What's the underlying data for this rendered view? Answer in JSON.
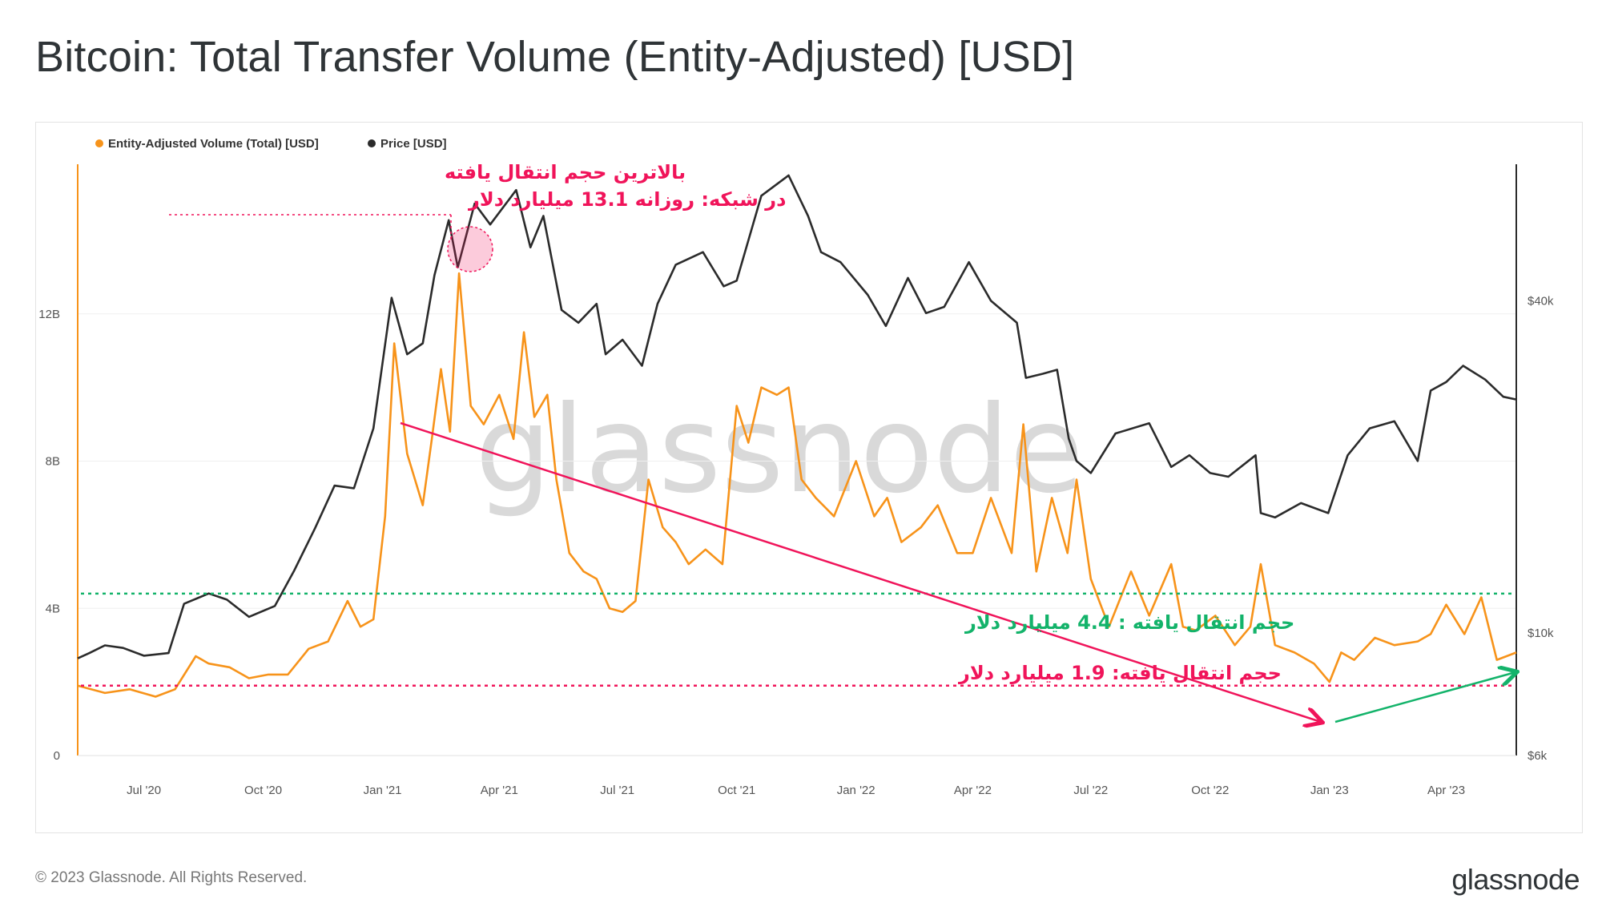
{
  "page": {
    "title": "Bitcoin: Total Transfer Volume (Entity-Adjusted) [USD]",
    "copyright": "© 2023 Glassnode. All Rights Reserved.",
    "logo": "glassnode",
    "watermark": "glassnode"
  },
  "colors": {
    "volume": "#f7931a",
    "price": "#2b2b2b",
    "annotation_pink": "#f0145a",
    "annotation_green": "#13b36a"
  },
  "chart_data": {
    "type": "line",
    "legend_position": "top-left",
    "grid": true,
    "x_ticks": [
      "Jul '20",
      "Oct '20",
      "Jan '21",
      "Apr '21",
      "Jul '21",
      "Oct '21",
      "Jan '22",
      "Apr '22",
      "Jul '22",
      "Oct '22",
      "Jan '23",
      "Apr '23"
    ],
    "x_tick_dates": [
      "2020-07-01",
      "2020-10-01",
      "2021-01-01",
      "2021-04-01",
      "2021-07-01",
      "2021-10-01",
      "2022-01-01",
      "2022-04-01",
      "2022-07-01",
      "2022-10-01",
      "2023-01-01",
      "2023-04-01"
    ],
    "xlim": [
      "2020-05-11",
      "2023-05-25"
    ],
    "y_left": {
      "ticks": [
        "0",
        "4B",
        "8B",
        "12B"
      ],
      "tick_values": [
        0,
        4000000000,
        8000000000,
        12000000000
      ],
      "ylim": [
        0,
        16000000000
      ]
    },
    "y_right": {
      "scale": "log",
      "ticks": [
        "$6k",
        "$10k",
        "$40k"
      ],
      "tick_values": [
        6000,
        10000,
        40000
      ],
      "ylim": [
        6000,
        70000
      ]
    },
    "series": [
      {
        "name": "Entity-Adjusted Volume (Total) [USD]",
        "axis": "left",
        "x": [
          "2020-05-11",
          "2020-06-01",
          "2020-06-20",
          "2020-07-10",
          "2020-07-25",
          "2020-08-10",
          "2020-08-20",
          "2020-09-05",
          "2020-09-20",
          "2020-10-05",
          "2020-10-20",
          "2020-11-05",
          "2020-11-20",
          "2020-12-05",
          "2020-12-15",
          "2020-12-25",
          "2021-01-03",
          "2021-01-10",
          "2021-01-20",
          "2021-02-01",
          "2021-02-08",
          "2021-02-15",
          "2021-02-22",
          "2021-03-01",
          "2021-03-10",
          "2021-03-20",
          "2021-04-01",
          "2021-04-12",
          "2021-04-20",
          "2021-04-28",
          "2021-05-08",
          "2021-05-15",
          "2021-05-25",
          "2021-06-05",
          "2021-06-15",
          "2021-06-25",
          "2021-07-05",
          "2021-07-15",
          "2021-07-25",
          "2021-08-05",
          "2021-08-15",
          "2021-08-25",
          "2021-09-07",
          "2021-09-20",
          "2021-10-01",
          "2021-10-10",
          "2021-10-20",
          "2021-11-01",
          "2021-11-10",
          "2021-11-20",
          "2021-12-01",
          "2021-12-15",
          "2022-01-01",
          "2022-01-15",
          "2022-01-25",
          "2022-02-05",
          "2022-02-20",
          "2022-03-05",
          "2022-03-20",
          "2022-04-01",
          "2022-04-15",
          "2022-05-01",
          "2022-05-10",
          "2022-05-20",
          "2022-06-01",
          "2022-06-13",
          "2022-06-20",
          "2022-07-01",
          "2022-07-15",
          "2022-08-01",
          "2022-08-15",
          "2022-09-01",
          "2022-09-10",
          "2022-09-20",
          "2022-10-05",
          "2022-10-20",
          "2022-11-01",
          "2022-11-09",
          "2022-11-20",
          "2022-12-05",
          "2022-12-20",
          "2023-01-01",
          "2023-01-10",
          "2023-01-20",
          "2023-02-05",
          "2023-02-20",
          "2023-03-10",
          "2023-03-20",
          "2023-04-01",
          "2023-04-15",
          "2023-04-28",
          "2023-05-10",
          "2023-05-25"
        ],
        "values": [
          1900000000.0,
          1700000000.0,
          1800000000.0,
          1600000000.0,
          1800000000.0,
          2700000000.0,
          2500000000.0,
          2400000000.0,
          2100000000.0,
          2200000000.0,
          2200000000.0,
          2900000000.0,
          3100000000.0,
          4200000000.0,
          3500000000.0,
          3700000000.0,
          6500000000.0,
          11200000000.0,
          8200000000.0,
          6800000000.0,
          8600000000.0,
          10500000000.0,
          8800000000.0,
          13100000000.0,
          9500000000.0,
          9000000000.0,
          9800000000.0,
          8600000000.0,
          11500000000.0,
          9200000000.0,
          9800000000.0,
          7500000000.0,
          5500000000.0,
          5000000000.0,
          4800000000.0,
          4000000000.0,
          3900000000.0,
          4200000000.0,
          7500000000.0,
          6200000000.0,
          5800000000.0,
          5200000000.0,
          5600000000.0,
          5200000000.0,
          9500000000.0,
          8500000000.0,
          10000000000.0,
          9800000000.0,
          10000000000.0,
          7500000000.0,
          7000000000.0,
          6500000000.0,
          8000000000.0,
          6500000000.0,
          7000000000.0,
          5800000000.0,
          6200000000.0,
          6800000000.0,
          5500000000.0,
          5500000000.0,
          7000000000.0,
          5500000000.0,
          9000000000.0,
          5000000000.0,
          7000000000.0,
          5500000000.0,
          7500000000.0,
          4800000000.0,
          3500000000.0,
          5000000000.0,
          3800000000.0,
          5200000000.0,
          3500000000.0,
          3400000000.0,
          3800000000.0,
          3000000000.0,
          3500000000.0,
          5200000000.0,
          3000000000.0,
          2800000000.0,
          2500000000.0,
          2000000000.0,
          2800000000.0,
          2600000000.0,
          3200000000.0,
          3000000000.0,
          3100000000.0,
          3300000000.0,
          4100000000.0,
          3300000000.0,
          4300000000.0,
          2600000000.0,
          2800000000.0
        ]
      },
      {
        "name": "Price [USD]",
        "axis": "right",
        "x": [
          "2020-05-11",
          "2020-05-20",
          "2020-06-01",
          "2020-06-15",
          "2020-07-01",
          "2020-07-20",
          "2020-08-01",
          "2020-08-20",
          "2020-09-03",
          "2020-09-20",
          "2020-10-10",
          "2020-10-25",
          "2020-11-10",
          "2020-11-25",
          "2020-12-10",
          "2020-12-25",
          "2021-01-08",
          "2021-01-20",
          "2021-02-01",
          "2021-02-10",
          "2021-02-21",
          "2021-02-28",
          "2021-03-13",
          "2021-03-25",
          "2021-04-14",
          "2021-04-25",
          "2021-05-05",
          "2021-05-19",
          "2021-06-01",
          "2021-06-15",
          "2021-06-22",
          "2021-07-05",
          "2021-07-20",
          "2021-08-01",
          "2021-08-15",
          "2021-09-05",
          "2021-09-21",
          "2021-10-01",
          "2021-10-20",
          "2021-11-10",
          "2021-11-25",
          "2021-12-05",
          "2021-12-20",
          "2022-01-10",
          "2022-01-24",
          "2022-02-10",
          "2022-02-24",
          "2022-03-10",
          "2022-03-29",
          "2022-04-15",
          "2022-05-05",
          "2022-05-12",
          "2022-05-25",
          "2022-06-05",
          "2022-06-14",
          "2022-06-20",
          "2022-07-01",
          "2022-07-20",
          "2022-08-15",
          "2022-09-01",
          "2022-09-15",
          "2022-10-01",
          "2022-10-15",
          "2022-11-05",
          "2022-11-09",
          "2022-11-20",
          "2022-12-10",
          "2022-12-31",
          "2023-01-15",
          "2023-02-01",
          "2023-02-20",
          "2023-03-10",
          "2023-03-20",
          "2023-04-01",
          "2023-04-14",
          "2023-05-01",
          "2023-05-15",
          "2023-05-25"
        ],
        "values": [
          9000,
          9200,
          9500,
          9400,
          9100,
          9200,
          11300,
          11800,
          11500,
          10700,
          11200,
          13000,
          15500,
          18500,
          18300,
          23500,
          40500,
          32000,
          33500,
          44500,
          56000,
          46000,
          60000,
          55000,
          63500,
          50000,
          57000,
          38500,
          36500,
          39500,
          32000,
          34000,
          30500,
          39500,
          46500,
          49000,
          42500,
          43500,
          62000,
          67500,
          57000,
          49000,
          47000,
          41000,
          36000,
          44000,
          38000,
          39000,
          47000,
          40000,
          36500,
          29000,
          29500,
          30000,
          22500,
          20500,
          19500,
          23000,
          24000,
          20000,
          21000,
          19500,
          19200,
          21000,
          16500,
          16200,
          17200,
          16500,
          21000,
          23500,
          24200,
          20500,
          27500,
          28500,
          30500,
          28800,
          26800,
          26500
        ]
      }
    ]
  },
  "annotations": {
    "peak_line1": "بالاترین حجم انتقال یافته",
    "peak_line2": "در شبکه: روزانه 13.1 میلیارد دلار",
    "green_line_label": "حجم انتقال یافته : 4.4 میلیارد دلار",
    "pink_line_label": "حجم انتقال یافته: 1.9 میلیارد دلار",
    "green_line_value": 4400000000,
    "pink_line_value": 1900000000
  }
}
